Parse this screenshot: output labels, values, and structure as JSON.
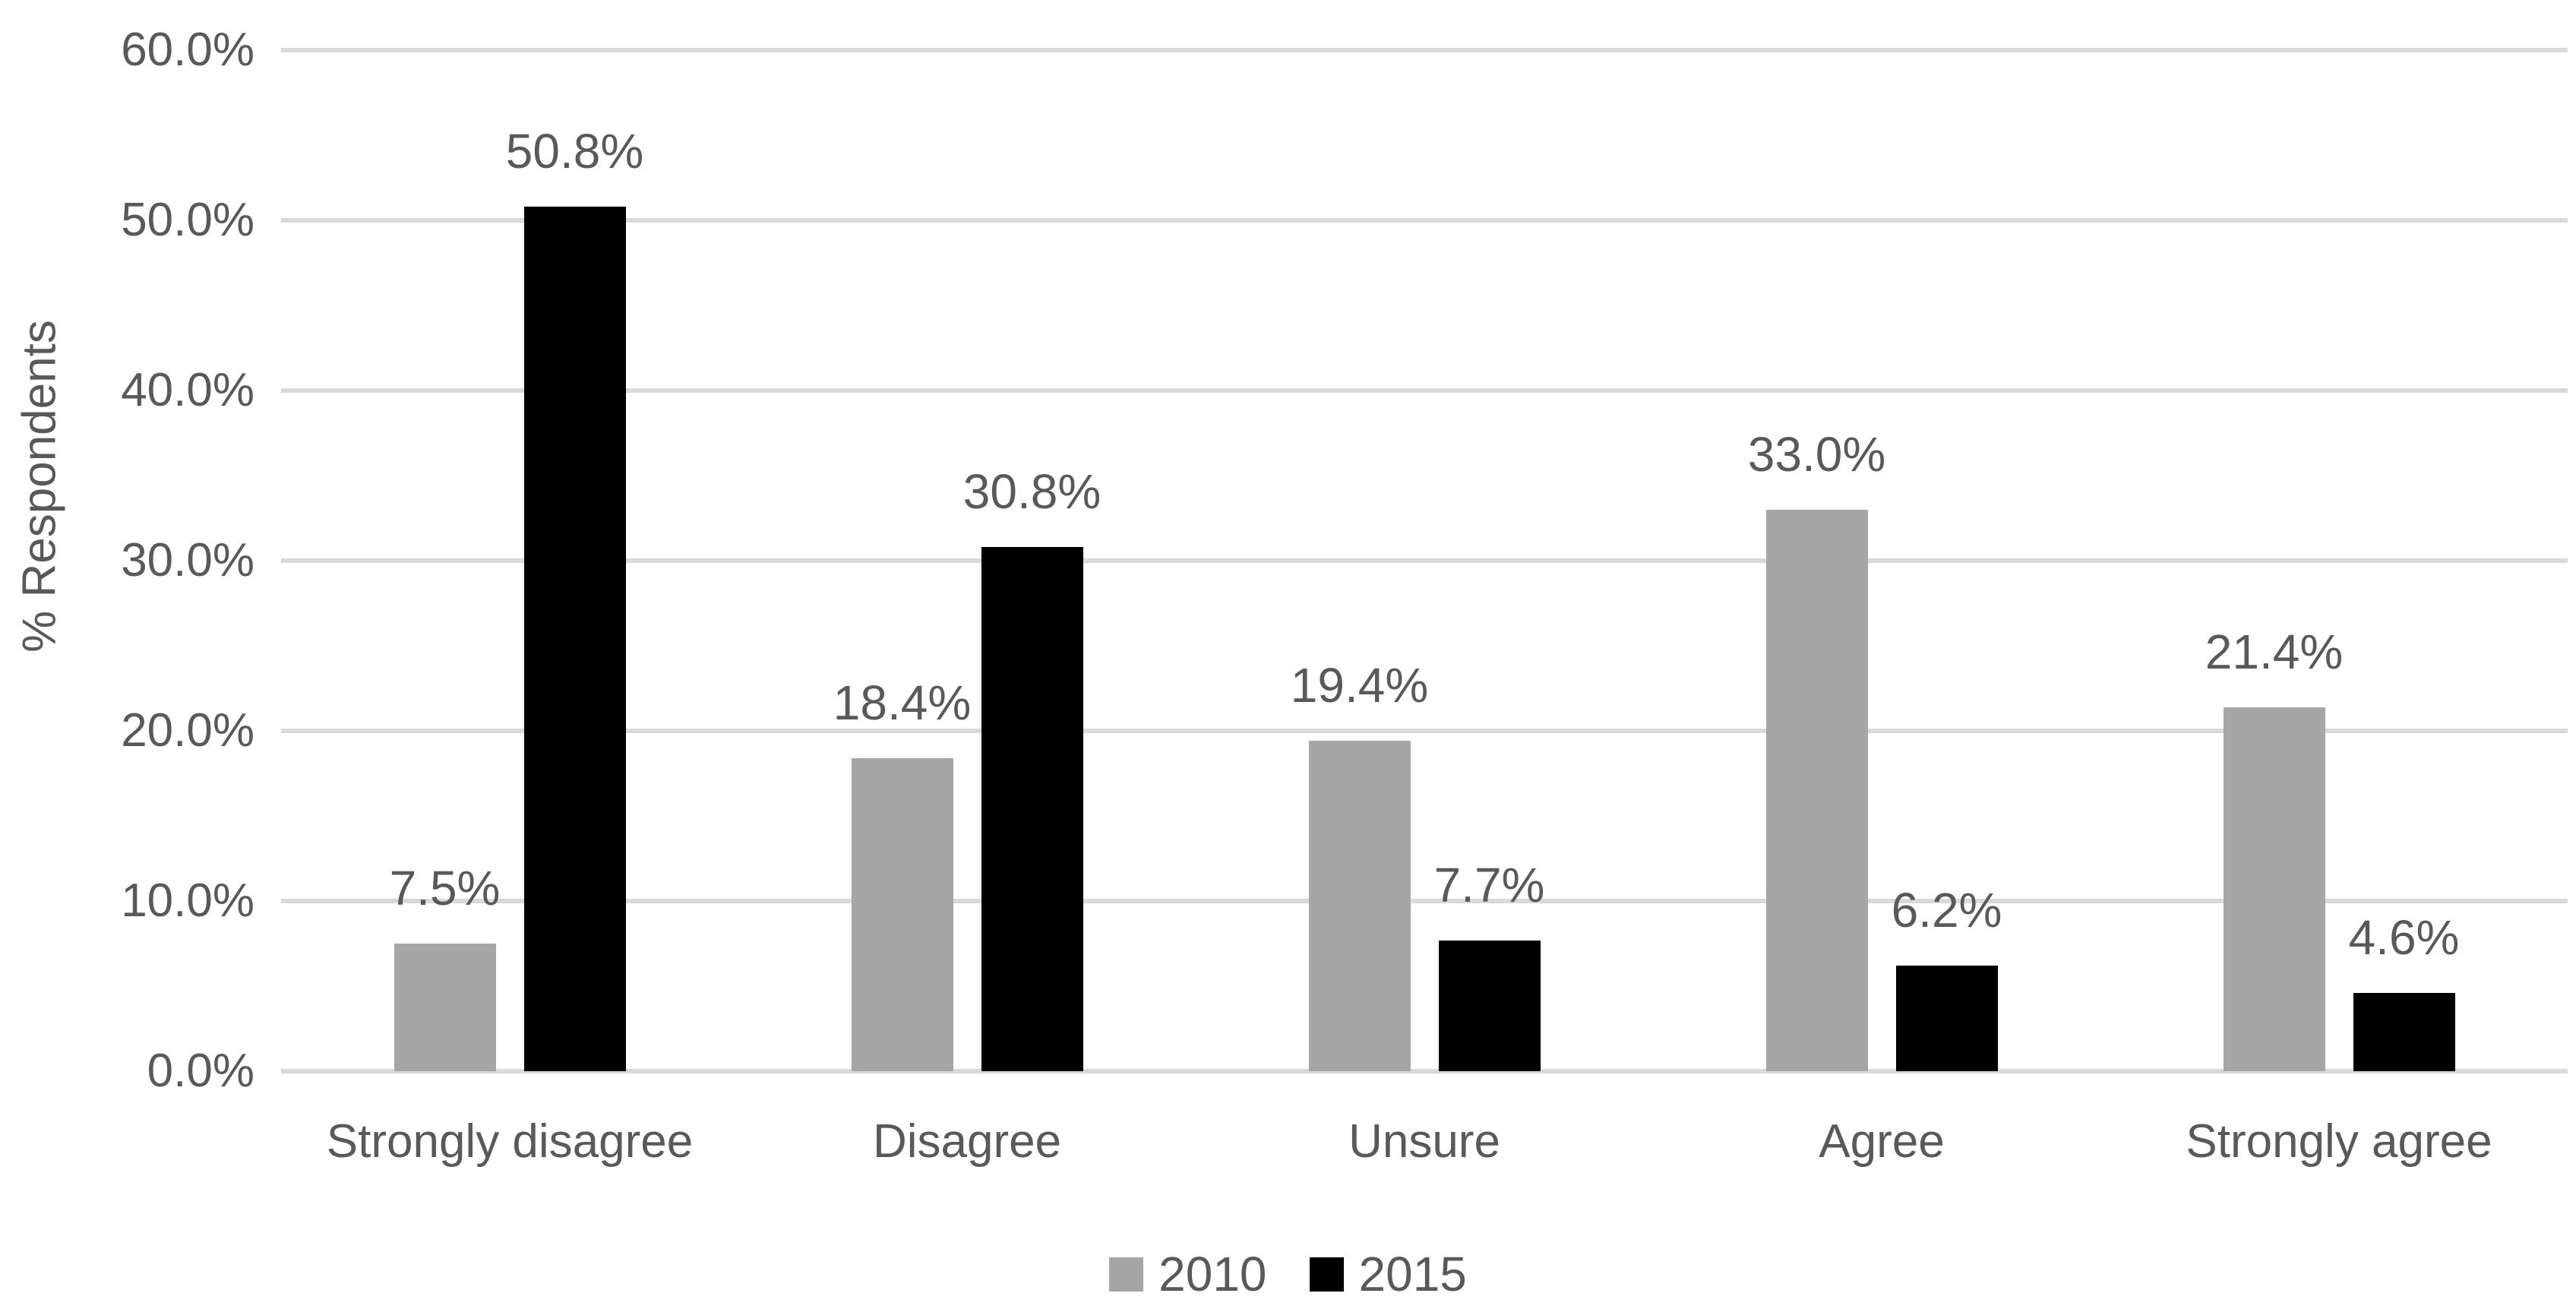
{
  "chart_data": {
    "type": "bar",
    "title": "",
    "xlabel": "",
    "ylabel": "% Respondents",
    "ylim": [
      0,
      60
    ],
    "grid": true,
    "legend_position": "bottom",
    "categories": [
      "Strongly disagree",
      "Disagree",
      "Unsure",
      "Agree",
      "Strongly agree"
    ],
    "series": [
      {
        "name": "2010",
        "color": "#a6a6a6",
        "values": [
          7.5,
          18.4,
          19.4,
          33.0,
          21.4
        ],
        "labels": [
          "7.5%",
          "18.4%",
          "19.4%",
          "33.0%",
          "21.4%"
        ]
      },
      {
        "name": "2015",
        "color": "#000000",
        "values": [
          50.8,
          30.8,
          7.7,
          6.2,
          4.6
        ],
        "labels": [
          "50.8%",
          "30.8%",
          "7.7%",
          "6.2%",
          "4.6%"
        ]
      }
    ],
    "yticks": [
      {
        "value": 0,
        "label": "0.0%"
      },
      {
        "value": 10,
        "label": "10.0%"
      },
      {
        "value": 20,
        "label": "20.0%"
      },
      {
        "value": 30,
        "label": "30.0%"
      },
      {
        "value": 40,
        "label": "40.0%"
      },
      {
        "value": 50,
        "label": "50.0%"
      },
      {
        "value": 60,
        "label": "60.0%"
      }
    ],
    "styles": {
      "text_color": "#595959",
      "gridline_color": "#d9d9d9",
      "background": "#ffffff"
    }
  }
}
